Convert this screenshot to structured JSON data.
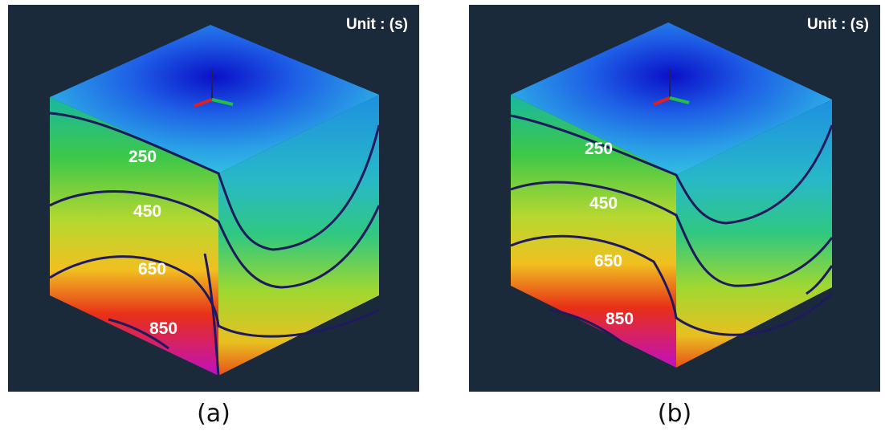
{
  "panels": [
    {
      "id": "a",
      "unit_label": "Unit : (s)",
      "caption": "(a)",
      "contour_labels": [
        "250",
        "450",
        "650",
        "850"
      ]
    },
    {
      "id": "b",
      "unit_label": "Unit : (s)",
      "caption": "(b)",
      "contour_labels": [
        "250",
        "450",
        "650",
        "850"
      ]
    }
  ],
  "colors": {
    "background": "#1b2a3b",
    "contour_line": "#1f1a5e",
    "low": "#1020d0",
    "high": "#c010c0"
  }
}
